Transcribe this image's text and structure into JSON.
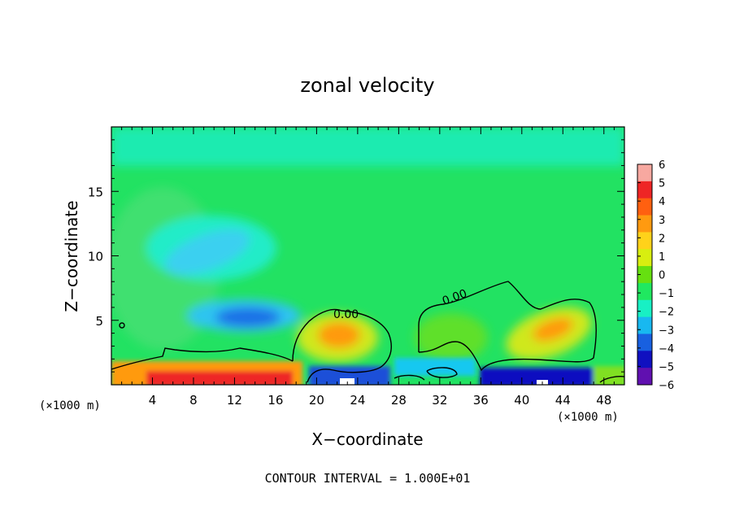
{
  "chart_data": {
    "type": "heatmap",
    "title": "zonal velocity",
    "xlabel": "X−coordinate",
    "ylabel": "Z−coordinate",
    "x_unit_left": "(×1000 m)",
    "x_unit_right": "(×1000 m)",
    "xlim": [
      0,
      50
    ],
    "ylim": [
      0,
      20
    ],
    "x_ticks": [
      4,
      8,
      12,
      16,
      20,
      24,
      28,
      32,
      36,
      40,
      44,
      48
    ],
    "y_ticks": [
      5,
      10,
      15
    ],
    "colorbar": {
      "ticks": [
        "6",
        "5",
        "4",
        "3",
        "2",
        "1",
        "0",
        "−1",
        "−2",
        "−3",
        "−4",
        "−5",
        "−6"
      ],
      "values": [
        6,
        5,
        4,
        3,
        2,
        1,
        0,
        -1,
        -2,
        -3,
        -4,
        -5,
        -6
      ],
      "colors": [
        "#f7a8a0",
        "#ee2525",
        "#ff6010",
        "#ff9a10",
        "#ffd21a",
        "#d8ee10",
        "#66e010",
        "#20e860",
        "#18f0c4",
        "#18b8f0",
        "#1860e0",
        "#1010c0",
        "#6010b0"
      ]
    },
    "contour_label": "0.00",
    "contour_label_2": "0.00",
    "contour_interval_text": "CONTOUR INTERVAL = 1.000E+01",
    "features": [
      {
        "x": 10,
        "z": 11,
        "value": -3
      },
      {
        "x": 14,
        "z": 5.5,
        "value": -3.5
      },
      {
        "x": 22,
        "z": 4,
        "value": 3.5
      },
      {
        "x": 43.5,
        "z": 4.2,
        "value": 3.5
      },
      {
        "x": 10,
        "z": 0.5,
        "value": 5.5
      },
      {
        "x": 22,
        "z": 0.5,
        "value": -5
      },
      {
        "x": 40,
        "z": 0.5,
        "value": -5
      }
    ]
  }
}
